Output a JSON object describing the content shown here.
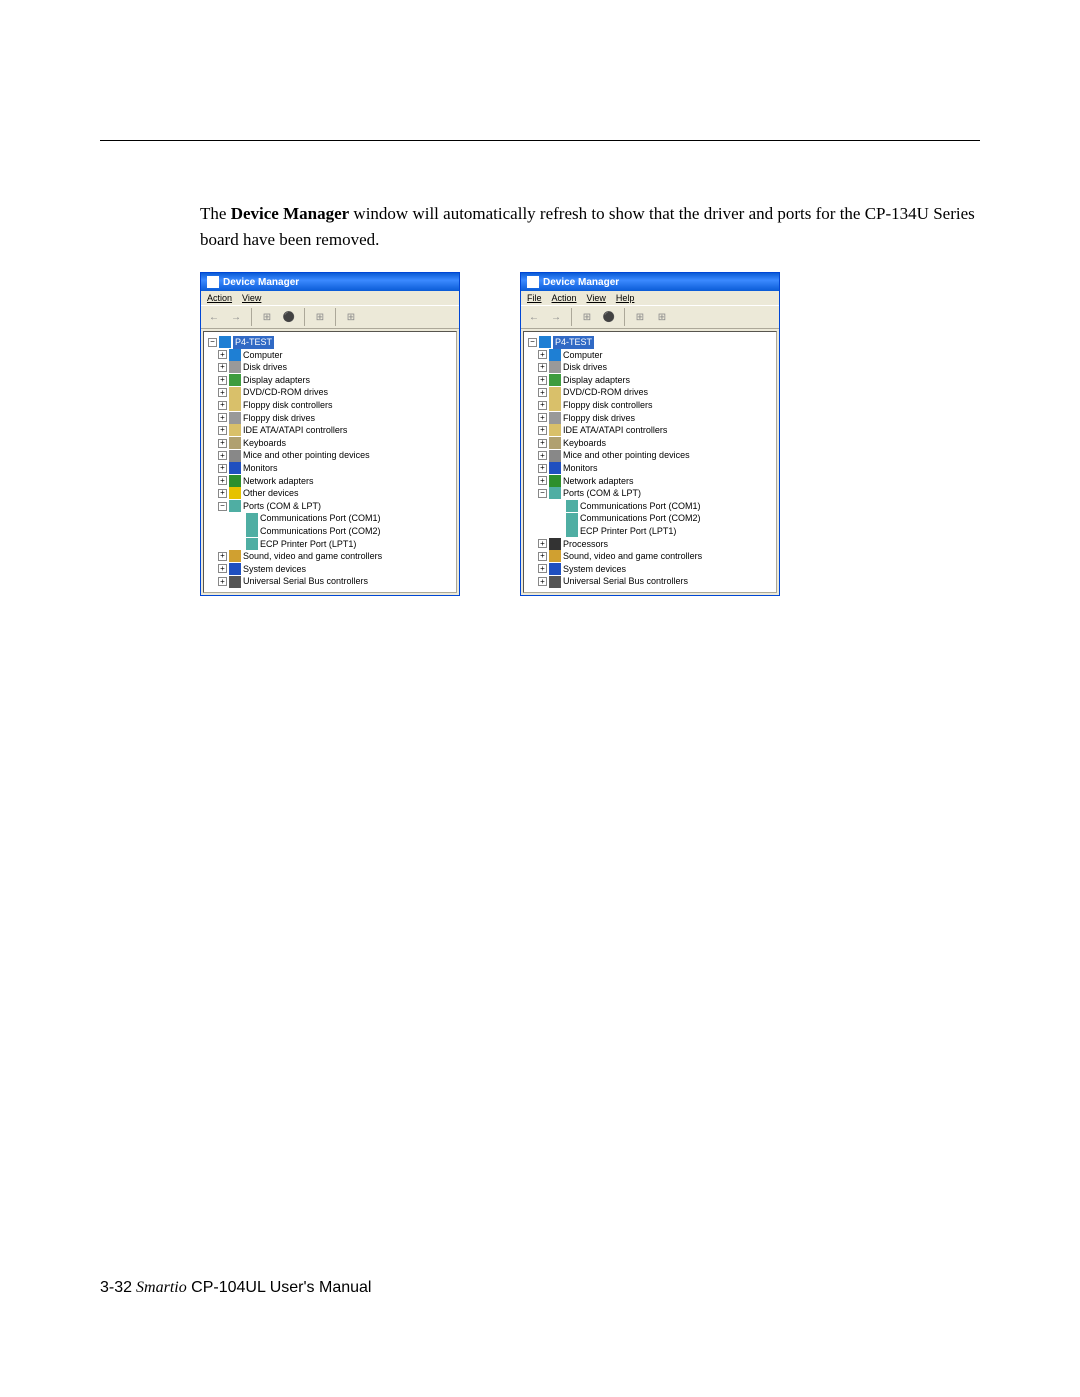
{
  "colors": {
    "page_bg": "#ffffff",
    "titlebar_gradient_start": "#0a5bd6",
    "titlebar_gradient_mid": "#3c8aff",
    "window_bg": "#ece9d8",
    "tree_bg": "#ffffff",
    "selection_bg": "#316ac5",
    "selection_fg": "#ffffff",
    "text": "#000000"
  },
  "intro": {
    "prefix": "The ",
    "bold": "Device Manager",
    "rest": " window will automatically refresh to show that the driver and ports for the CP-134U Series board have been removed."
  },
  "left_window": {
    "title": "Device Manager",
    "menus": [
      "Action",
      "View"
    ],
    "toolbar": [
      "←",
      "→",
      "|",
      "⊞",
      "⚫",
      "|",
      "⊞",
      "|",
      "⊞"
    ],
    "root": "P4-TEST",
    "nodes": [
      {
        "label": "Computer",
        "icon": "#1e7fd4",
        "exp": "+"
      },
      {
        "label": "Disk drives",
        "icon": "#999999",
        "exp": "+"
      },
      {
        "label": "Display adapters",
        "icon": "#3e9c3e",
        "exp": "+"
      },
      {
        "label": "DVD/CD-ROM drives",
        "icon": "#d9c06a",
        "exp": "+"
      },
      {
        "label": "Floppy disk controllers",
        "icon": "#d9c06a",
        "exp": "+"
      },
      {
        "label": "Floppy disk drives",
        "icon": "#999999",
        "exp": "+"
      },
      {
        "label": "IDE ATA/ATAPI controllers",
        "icon": "#d9c06a",
        "exp": "+"
      },
      {
        "label": "Keyboards",
        "icon": "#b0a070",
        "exp": "+"
      },
      {
        "label": "Mice and other pointing devices",
        "icon": "#888888",
        "exp": "+"
      },
      {
        "label": "Monitors",
        "icon": "#2050c0",
        "exp": "+"
      },
      {
        "label": "Network adapters",
        "icon": "#2d8f2d",
        "exp": "+"
      },
      {
        "label": "Other devices",
        "icon": "#e6c200",
        "exp": "+"
      },
      {
        "label": "Ports (COM & LPT)",
        "icon": "#4faea3",
        "exp": "−",
        "children": [
          {
            "label": "Communications Port (COM1)",
            "icon": "#4faea3"
          },
          {
            "label": "Communications Port (COM2)",
            "icon": "#4faea3"
          },
          {
            "label": "ECP Printer Port (LPT1)",
            "icon": "#4faea3"
          }
        ]
      },
      {
        "label": "Sound, video and game controllers",
        "icon": "#d0a030",
        "exp": "+"
      },
      {
        "label": "System devices",
        "icon": "#2050c0",
        "exp": "+"
      },
      {
        "label": "Universal Serial Bus controllers",
        "icon": "#555555",
        "exp": "+"
      }
    ]
  },
  "right_window": {
    "title": "Device Manager",
    "menus": [
      "File",
      "Action",
      "View",
      "Help"
    ],
    "toolbar": [
      "←",
      "→",
      "|",
      "⊞",
      "⚫",
      "|",
      "⊞",
      "⊞"
    ],
    "root": "P4-TEST",
    "nodes": [
      {
        "label": "Computer",
        "icon": "#1e7fd4",
        "exp": "+"
      },
      {
        "label": "Disk drives",
        "icon": "#999999",
        "exp": "+"
      },
      {
        "label": "Display adapters",
        "icon": "#3e9c3e",
        "exp": "+"
      },
      {
        "label": "DVD/CD-ROM drives",
        "icon": "#d9c06a",
        "exp": "+"
      },
      {
        "label": "Floppy disk controllers",
        "icon": "#d9c06a",
        "exp": "+"
      },
      {
        "label": "Floppy disk drives",
        "icon": "#999999",
        "exp": "+"
      },
      {
        "label": "IDE ATA/ATAPI controllers",
        "icon": "#d9c06a",
        "exp": "+"
      },
      {
        "label": "Keyboards",
        "icon": "#b0a070",
        "exp": "+"
      },
      {
        "label": "Mice and other pointing devices",
        "icon": "#888888",
        "exp": "+"
      },
      {
        "label": "Monitors",
        "icon": "#2050c0",
        "exp": "+"
      },
      {
        "label": "Network adapters",
        "icon": "#2d8f2d",
        "exp": "+"
      },
      {
        "label": "Ports (COM & LPT)",
        "icon": "#4faea3",
        "exp": "−",
        "children": [
          {
            "label": "Communications Port (COM1)",
            "icon": "#4faea3"
          },
          {
            "label": "Communications Port (COM2)",
            "icon": "#4faea3"
          },
          {
            "label": "ECP Printer Port (LPT1)",
            "icon": "#4faea3"
          }
        ]
      },
      {
        "label": "Processors",
        "icon": "#333333",
        "exp": "+"
      },
      {
        "label": "Sound, video and game controllers",
        "icon": "#d0a030",
        "exp": "+"
      },
      {
        "label": "System devices",
        "icon": "#2050c0",
        "exp": "+"
      },
      {
        "label": "Universal Serial Bus controllers",
        "icon": "#555555",
        "exp": "+"
      }
    ]
  },
  "footer": {
    "page": "3-32",
    "brand": "Smartio",
    "product": " CP-104UL User's Manual"
  }
}
